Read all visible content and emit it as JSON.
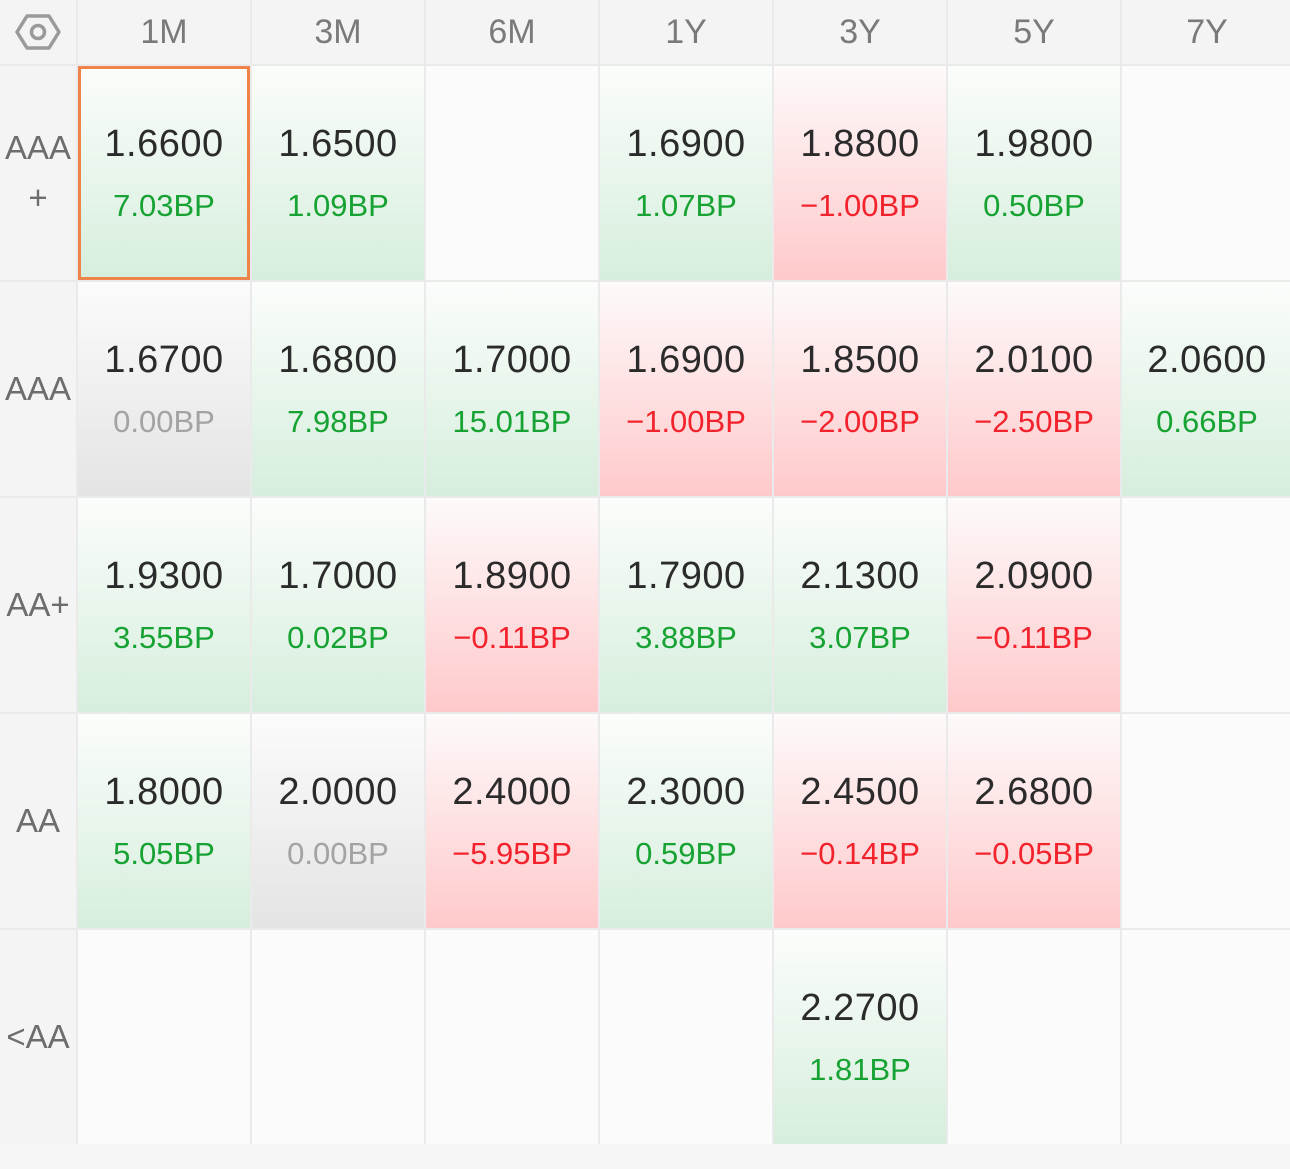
{
  "columns": [
    "1M",
    "3M",
    "6M",
    "1Y",
    "3Y",
    "5Y",
    "7Y"
  ],
  "colors": {
    "positive": "#17a333",
    "negative": "#f2232c",
    "neutral": "#a3a3a3",
    "selection": "#f0834a"
  },
  "settings_icon": "hexagon-settings-icon",
  "rows": [
    {
      "label": "AAA+",
      "cells": [
        {
          "value": "1.6600",
          "change": "7.03BP",
          "dir": "pos",
          "selected": true
        },
        {
          "value": "1.6500",
          "change": "1.09BP",
          "dir": "pos"
        },
        null,
        {
          "value": "1.6900",
          "change": "1.07BP",
          "dir": "pos"
        },
        {
          "value": "1.8800",
          "change": "−1.00BP",
          "dir": "neg"
        },
        {
          "value": "1.9800",
          "change": "0.50BP",
          "dir": "pos"
        },
        null
      ]
    },
    {
      "label": "AAA",
      "cells": [
        {
          "value": "1.6700",
          "change": "0.00BP",
          "dir": "flat"
        },
        {
          "value": "1.6800",
          "change": "7.98BP",
          "dir": "pos"
        },
        {
          "value": "1.7000",
          "change": "15.01BP",
          "dir": "pos"
        },
        {
          "value": "1.6900",
          "change": "−1.00BP",
          "dir": "neg"
        },
        {
          "value": "1.8500",
          "change": "−2.00BP",
          "dir": "neg"
        },
        {
          "value": "2.0100",
          "change": "−2.50BP",
          "dir": "neg"
        },
        {
          "value": "2.0600",
          "change": "0.66BP",
          "dir": "pos"
        }
      ]
    },
    {
      "label": "AA+",
      "cells": [
        {
          "value": "1.9300",
          "change": "3.55BP",
          "dir": "pos"
        },
        {
          "value": "1.7000",
          "change": "0.02BP",
          "dir": "pos"
        },
        {
          "value": "1.8900",
          "change": "−0.11BP",
          "dir": "neg"
        },
        {
          "value": "1.7900",
          "change": "3.88BP",
          "dir": "pos"
        },
        {
          "value": "2.1300",
          "change": "3.07BP",
          "dir": "pos"
        },
        {
          "value": "2.0900",
          "change": "−0.11BP",
          "dir": "neg"
        },
        null
      ]
    },
    {
      "label": "AA",
      "cells": [
        {
          "value": "1.8000",
          "change": "5.05BP",
          "dir": "pos"
        },
        {
          "value": "2.0000",
          "change": "0.00BP",
          "dir": "flat"
        },
        {
          "value": "2.4000",
          "change": "−5.95BP",
          "dir": "neg"
        },
        {
          "value": "2.3000",
          "change": "0.59BP",
          "dir": "pos"
        },
        {
          "value": "2.4500",
          "change": "−0.14BP",
          "dir": "neg"
        },
        {
          "value": "2.6800",
          "change": "−0.05BP",
          "dir": "neg"
        },
        null
      ]
    },
    {
      "label": "<AA",
      "cells": [
        null,
        null,
        null,
        null,
        {
          "value": "2.2700",
          "change": "1.81BP",
          "dir": "pos"
        },
        null,
        null
      ]
    }
  ]
}
